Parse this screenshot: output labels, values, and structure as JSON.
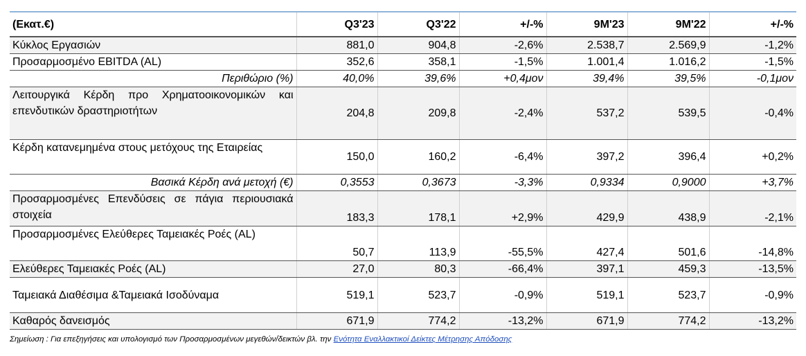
{
  "table": {
    "header": [
      "(Εκατ.€)",
      "Q3'23",
      "Q3'22",
      "+/-%",
      "9M'23",
      "9M'22",
      "+/-%"
    ],
    "rows": [
      [
        "Κύκλος Εργασιών",
        "881,0",
        "904,8",
        "-2,6%",
        "2.538,7",
        "2.569,9",
        "-1,2%"
      ],
      [
        "Προσαρμοσμένο EBITDA (AL)",
        "352,6",
        "358,1",
        "-1,5%",
        "1.001,4",
        "1.016,2",
        "-1,5%"
      ],
      [
        "Περιθώριο (%)",
        "40,0%",
        "39,6%",
        "+0,4μον",
        "39,4%",
        "39,5%",
        "-0,1μον"
      ],
      [
        "Λειτουργικά Κέρδη προ Χρηματοοικονομικών και επενδυτικών δραστηριοτήτων",
        "204,8",
        "209,8",
        "-2,4%",
        "537,2",
        "539,5",
        "-0,4%"
      ],
      [
        "Κέρδη κατανεμημένα στους μετόχους της Εταιρείας",
        "150,0",
        "160,2",
        "-6,4%",
        "397,2",
        "396,4",
        "+0,2%"
      ],
      [
        "Βασικά Κέρδη ανά μετοχή (€)",
        "0,3553",
        "0,3673",
        "-3,3%",
        "0,9334",
        "0,9000",
        "+3,7%"
      ],
      [
        "Προσαρμοσμένες Επενδύσεις σε πάγια περιουσιακά στοιχεία",
        "183,3",
        "178,1",
        "+2,9%",
        "429,9",
        "438,9",
        "-2,1%"
      ],
      [
        "Προσαρμοσμένες Ελεύθερες Ταμειακές Ροές (AL)",
        "50,7",
        "113,9",
        "-55,5%",
        "427,4",
        "501,6",
        "-14,8%"
      ],
      [
        "Ελεύθερες Ταμειακές Ροές (AL)",
        "27,0",
        "80,3",
        "-66,4%",
        "397,1",
        "459,3",
        "-13,5%"
      ],
      [
        "Ταμειακά Διαθέσιμα &Ταμειακά Ισοδύναμα",
        "519,1",
        "523,7",
        "-0,9%",
        "519,1",
        "523,7",
        "-0,9%"
      ],
      [
        "Καθαρός δανεισμός",
        "671,9",
        "774,2",
        "-13,2%",
        "671,9",
        "774,2",
        "-13,2%"
      ]
    ]
  },
  "note": {
    "text": "Σημείωση : Για επεξηγήσεις και υπολογισμό των Προσαρμοσμένων μεγεθών/δεικτών βλ. την",
    "link": "Ενότητα Εναλλακτικοί Δείκτες Μέτρησης Απόδοσης"
  }
}
